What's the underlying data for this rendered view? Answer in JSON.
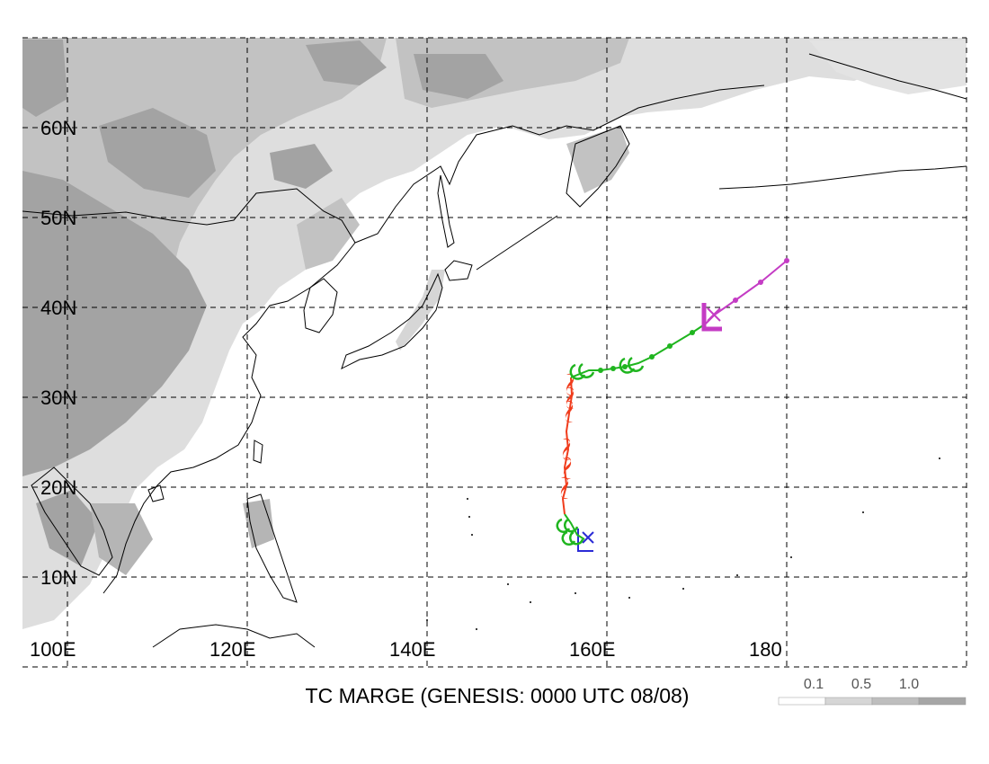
{
  "title": "TC MARGE (GENESIS: 0000 UTC 08/08)",
  "lat_labels": [
    "60N",
    "50N",
    "40N",
    "30N",
    "20N",
    "10N"
  ],
  "lon_labels": [
    "100E",
    "120E",
    "140E",
    "160E",
    "180"
  ],
  "legend": {
    "labels": [
      "0.1",
      "0.5",
      "1.0"
    ],
    "colors": [
      "#ffffff",
      "#d6d6d6",
      "#bebebe",
      "#a6a6a6"
    ]
  },
  "colors": {
    "stage_red": "#f03c1c",
    "stage_green": "#1fb51f",
    "stage_magenta": "#c43cc4",
    "genesis_blue": "#2b2bd6",
    "terrain_light": "#dcdcdc",
    "terrain_mid": "#bdbdbd",
    "terrain_dark": "#a0a0a0"
  },
  "track": {
    "genesis_marker": "x",
    "final_marker": "x",
    "low_symbol": "L"
  }
}
